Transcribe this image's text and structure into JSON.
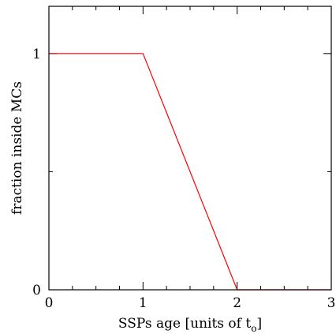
{
  "chart_data": {
    "type": "line",
    "xlabel": "SSPs age [units of t",
    "xlabel_sub": "o",
    "xlabel_tail": "]",
    "ylabel": "fraction inside MCs",
    "xlim": [
      0,
      3
    ],
    "ylim": [
      0,
      1.2
    ],
    "x_ticks": [
      {
        "value": 0,
        "label": "0"
      },
      {
        "value": 1,
        "label": "1"
      },
      {
        "value": 2,
        "label": "2"
      },
      {
        "value": 3,
        "label": "3"
      }
    ],
    "x_minor_step": 0.25,
    "y_ticks": [
      {
        "value": 0,
        "label": "0"
      },
      {
        "value": 1,
        "label": "1"
      }
    ],
    "y_minor_ticks": [
      0.5
    ],
    "grid": false,
    "series": [
      {
        "color": "#ff0000",
        "x": [
          0,
          1,
          2,
          3
        ],
        "y": [
          1,
          1,
          0,
          0
        ]
      }
    ]
  }
}
